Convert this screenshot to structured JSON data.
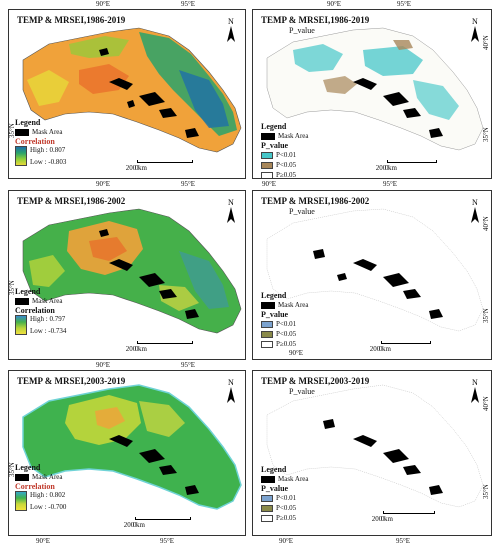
{
  "panels": [
    {
      "id": "p1",
      "title": "TEMP & MRSEI,1986-2019",
      "subtitle": "",
      "kind": "correlation",
      "legend": {
        "heading": "Legend",
        "mask": "Mask Area",
        "ramp_heading": "Correlation",
        "high": "High : 0.807",
        "low": "Low : -0.803"
      },
      "ramp_colors": [
        "#1f6fa8",
        "#2aa36b",
        "#8ccf3a",
        "#e7d93a"
      ],
      "scale": {
        "zero": "0",
        "dist": "200 km"
      },
      "ticks": {
        "lat": "35°N",
        "lat_right": "40°N",
        "lon1": "90°E",
        "lon2": "95°E"
      }
    },
    {
      "id": "p2",
      "title": "TEMP & MRSEI,1986-2019",
      "subtitle": "P_value",
      "kind": "pvalue",
      "legend": {
        "heading": "Legend",
        "mask": "Mask Area",
        "ramp_heading": "P_value",
        "c1": "P<0.01",
        "c2": "P<0.05",
        "c3": "P≥0.05"
      },
      "class_colors": [
        "#47c7c9",
        "#a8875a",
        "#ffffff"
      ],
      "scale": {
        "zero": "0",
        "dist": "200 km"
      },
      "ticks": {
        "lat": "35°N",
        "lat_right": "40°N",
        "lon1": "90°E",
        "lon2": "95°E"
      }
    },
    {
      "id": "p3",
      "title": "TEMP & MRSEI,1986-2002",
      "subtitle": "",
      "kind": "correlation",
      "legend": {
        "heading": "Legend",
        "mask": "Mask Area",
        "ramp_heading": "Correlation",
        "high": "High : 0.797",
        "low": "Low : -0.734"
      },
      "ramp_colors": [
        "#3a8ccf",
        "#45b04a",
        "#b7d43a",
        "#f0e040"
      ],
      "scale": {
        "zero": "0",
        "dist": "200 km"
      },
      "ticks": {
        "lat": "35°N",
        "lat_right": "40°N",
        "lon1": "90°E",
        "lon2": "95°E"
      }
    },
    {
      "id": "p4",
      "title": "TEMP & MRSEI,1986-2002",
      "subtitle": "P_value",
      "kind": "pvalue",
      "legend": {
        "heading": "Legend",
        "mask": "Mask Area",
        "ramp_heading": "P_value",
        "c1": "P<0.01",
        "c2": "P<0.05",
        "c3": "P≥0.05"
      },
      "class_colors": [
        "#7ca3cf",
        "#8a8a4a",
        "#ffffff"
      ],
      "scale": {
        "zero": "0",
        "dist": "200 km"
      },
      "ticks": {
        "lat": "35°N",
        "lat_right": "40°N",
        "lon1": "90°E",
        "lon2": "95°E"
      }
    },
    {
      "id": "p5",
      "title": "TEMP & MRSEI,2003-2019",
      "subtitle": "",
      "kind": "correlation",
      "legend": {
        "heading": "Legend",
        "mask": "Mask Area",
        "ramp_heading": "Correlation",
        "high": "High : 0.802",
        "low": "Low : -0.700"
      },
      "ramp_colors": [
        "#35a7c9",
        "#3fb24e",
        "#c9d83a",
        "#f2e23c"
      ],
      "scale": {
        "zero": "0",
        "dist": "200 km"
      },
      "ticks": {
        "lat": "35°N",
        "lat_right": "40°N",
        "lon1": "90°E",
        "lon2": "95°E"
      }
    },
    {
      "id": "p6",
      "title": "TEMP & MRSEI,2003-2019",
      "subtitle": "P_value",
      "kind": "pvalue",
      "legend": {
        "heading": "Legend",
        "mask": "Mask Area",
        "ramp_heading": "P_value",
        "c1": "P<0.01",
        "c2": "P<0.05",
        "c3": "P≥0.05"
      },
      "class_colors": [
        "#7ca3cf",
        "#8a8a4a",
        "#ffffff"
      ],
      "scale": {
        "zero": "0",
        "dist": "200 km"
      },
      "ticks": {
        "lat": "35°N",
        "lat_right": "40°N",
        "lon1": "90°E",
        "lon2": "95°E"
      }
    }
  ],
  "north_label": "N",
  "outer_ticks": {
    "top_lon1": "90°E",
    "top_lon2": "95°E"
  }
}
